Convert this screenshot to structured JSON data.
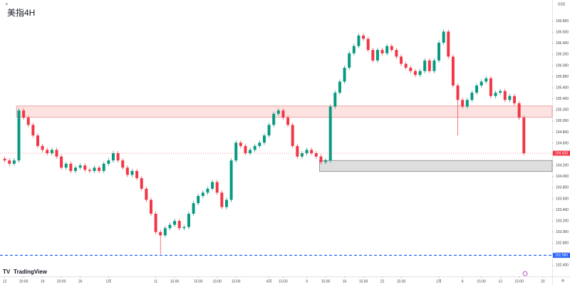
{
  "chart_data": {
    "type": "candlestick",
    "title": "美指4H",
    "brand": "TradingView",
    "currency": "USD",
    "up_color": "#089981",
    "down_color": "#f23645",
    "grid": false,
    "xlim": [
      -1,
      116
    ],
    "ylim": [
      102.2,
      107.18
    ],
    "yticks": [
      {
        "value": 102.4,
        "label": "102.400"
      },
      {
        "value": 102.6,
        "label": "102.600"
      },
      {
        "value": 102.8,
        "label": "102.800"
      },
      {
        "value": 103.0,
        "label": "103.000"
      },
      {
        "value": 103.2,
        "label": "103.200"
      },
      {
        "value": 103.4,
        "label": "103.400"
      },
      {
        "value": 103.6,
        "label": "103.600"
      },
      {
        "value": 103.8,
        "label": "103.800"
      },
      {
        "value": 104.0,
        "label": "104.000"
      },
      {
        "value": 104.2,
        "label": "104.200"
      },
      {
        "value": 104.4,
        "label": "104.400"
      },
      {
        "value": 104.6,
        "label": "104.600"
      },
      {
        "value": 104.8,
        "label": "104.800"
      },
      {
        "value": 105.0,
        "label": "105.000"
      },
      {
        "value": 105.2,
        "label": "105.200"
      },
      {
        "value": 105.4,
        "label": "105.400"
      },
      {
        "value": 105.6,
        "label": "105.600"
      },
      {
        "value": 105.8,
        "label": "105.800"
      },
      {
        "value": 106.0,
        "label": "106.000"
      },
      {
        "value": 106.2,
        "label": "106.200"
      },
      {
        "value": 106.4,
        "label": "106.400"
      },
      {
        "value": 106.6,
        "label": "106.600"
      },
      {
        "value": 106.8,
        "label": "106.800"
      }
    ],
    "xticks": [
      {
        "value": 0,
        "label": "12"
      },
      {
        "value": 4,
        "label": "20:00"
      },
      {
        "value": 8,
        "label": "19"
      },
      {
        "value": 12,
        "label": "20:00"
      },
      {
        "value": 16,
        "label": "26"
      },
      {
        "value": 22,
        "label": "1月"
      },
      {
        "value": 32,
        "label": "11"
      },
      {
        "value": 36,
        "label": "15:00"
      },
      {
        "value": 41,
        "label": "15:00"
      },
      {
        "value": 45,
        "label": "15:00"
      },
      {
        "value": 49,
        "label": "15:00"
      },
      {
        "value": 56,
        "label": "4月"
      },
      {
        "value": 59,
        "label": "15:00"
      },
      {
        "value": 64,
        "label": "9"
      },
      {
        "value": 68,
        "label": "15:00"
      },
      {
        "value": 72,
        "label": "16"
      },
      {
        "value": 76,
        "label": "15:00"
      },
      {
        "value": 80,
        "label": "22"
      },
      {
        "value": 84,
        "label": "15:00"
      },
      {
        "value": 92,
        "label": "1月"
      },
      {
        "value": 97,
        "label": "6"
      },
      {
        "value": 101,
        "label": "15:00"
      },
      {
        "value": 105,
        "label": "13"
      },
      {
        "value": 109,
        "label": "15:00"
      },
      {
        "value": 114,
        "label": "20"
      }
    ],
    "zones": [
      {
        "top": 105.27,
        "bottom": 105.07,
        "start": 2.5,
        "fill": "#fde2e2",
        "stroke": "#e08080"
      },
      {
        "top": 104.29,
        "bottom": 104.09,
        "start": 66.7,
        "fill": "#dedede",
        "stroke": "#777777"
      }
    ],
    "hlines": [
      {
        "value": 102.58,
        "label": "102.580",
        "color": "#2962ff"
      }
    ],
    "last_price": {
      "value": 104.42,
      "label": "104.420",
      "color": "#f23645"
    },
    "open": [
      104.32,
      104.29,
      104.23,
      104.29,
      105.19,
      105.06,
      104.93,
      104.74,
      104.55,
      104.48,
      104.42,
      104.48,
      104.36,
      104.16,
      104.23,
      104.1,
      104.16,
      104.2,
      104.12,
      104.1,
      104.16,
      104.1,
      104.23,
      104.29,
      104.42,
      104.29,
      104.16,
      104.03,
      104.1,
      103.97,
      103.78,
      103.58,
      103.33,
      103.0,
      102.94,
      103.07,
      103.13,
      103.2,
      103.07,
      103.09,
      103.33,
      103.52,
      103.65,
      103.71,
      103.78,
      103.9,
      103.71,
      103.45,
      103.58,
      104.29,
      104.61,
      104.55,
      104.42,
      104.48,
      104.55,
      104.61,
      104.74,
      104.93,
      105.13,
      105.19,
      105.06,
      104.93,
      104.55,
      104.36,
      104.42,
      104.48,
      104.42,
      104.36,
      104.26,
      104.29,
      105.26,
      105.51,
      105.71,
      105.96,
      106.22,
      106.35,
      106.54,
      106.48,
      106.28,
      106.09,
      106.28,
      106.22,
      106.35,
      106.28,
      106.16,
      106.03,
      105.96,
      105.9,
      105.83,
      105.9,
      106.09,
      105.9,
      106.09,
      106.41,
      106.61,
      106.16,
      105.64,
      105.38,
      105.26,
      105.38,
      105.51,
      105.64,
      105.71,
      105.77,
      105.45,
      105.51,
      105.54,
      105.38,
      105.45,
      105.32,
      105.06
    ],
    "high": [
      104.36,
      104.33,
      104.33,
      105.23,
      105.23,
      105.1,
      104.97,
      104.78,
      104.59,
      104.52,
      104.52,
      104.52,
      104.4,
      104.27,
      104.27,
      104.2,
      104.24,
      104.24,
      104.16,
      104.2,
      104.2,
      104.27,
      104.33,
      104.46,
      104.46,
      104.33,
      104.2,
      104.14,
      104.14,
      104.01,
      103.82,
      103.62,
      103.37,
      103.04,
      103.11,
      103.17,
      103.24,
      103.24,
      103.13,
      103.37,
      103.56,
      103.69,
      103.75,
      103.82,
      103.94,
      103.94,
      103.75,
      103.62,
      104.33,
      104.65,
      104.65,
      104.59,
      104.52,
      104.59,
      104.65,
      104.78,
      104.97,
      105.17,
      105.23,
      105.23,
      105.1,
      104.97,
      104.59,
      104.46,
      104.52,
      104.52,
      104.46,
      104.4,
      104.33,
      105.3,
      105.55,
      105.75,
      106.0,
      106.26,
      106.39,
      106.58,
      106.58,
      106.52,
      106.32,
      106.32,
      106.32,
      106.39,
      106.39,
      106.32,
      106.2,
      106.07,
      106.0,
      105.94,
      105.94,
      106.13,
      106.13,
      106.13,
      106.45,
      106.65,
      106.65,
      106.2,
      105.68,
      105.42,
      105.42,
      105.55,
      105.68,
      105.75,
      105.81,
      105.81,
      105.55,
      105.58,
      105.58,
      105.49,
      105.49,
      105.36,
      105.1
    ],
    "low": [
      104.25,
      104.19,
      104.19,
      104.25,
      105.02,
      104.89,
      104.7,
      104.51,
      104.44,
      104.38,
      104.38,
      104.32,
      104.12,
      104.12,
      104.06,
      104.06,
      104.12,
      104.08,
      104.06,
      104.06,
      104.06,
      104.06,
      104.19,
      104.25,
      104.25,
      104.12,
      103.99,
      103.99,
      103.93,
      103.74,
      103.54,
      103.29,
      102.96,
      102.6,
      102.9,
      103.03,
      103.09,
      103.03,
      103.03,
      103.05,
      103.29,
      103.48,
      103.61,
      103.67,
      103.74,
      103.67,
      103.41,
      103.41,
      103.54,
      104.25,
      104.51,
      104.38,
      104.38,
      104.44,
      104.51,
      104.57,
      104.7,
      104.89,
      105.09,
      105.02,
      104.89,
      104.51,
      104.32,
      104.32,
      104.38,
      104.38,
      104.32,
      104.22,
      104.22,
      104.25,
      105.22,
      105.47,
      105.67,
      105.92,
      106.18,
      106.31,
      106.44,
      106.24,
      106.05,
      106.05,
      106.18,
      106.18,
      106.24,
      106.12,
      105.99,
      105.92,
      105.86,
      105.79,
      105.79,
      105.86,
      105.86,
      105.86,
      106.05,
      106.37,
      106.12,
      105.6,
      104.74,
      105.22,
      105.22,
      105.34,
      105.47,
      105.6,
      105.67,
      105.41,
      105.41,
      105.47,
      105.34,
      105.34,
      105.28,
      105.02,
      104.38
    ],
    "close": [
      104.29,
      104.23,
      104.29,
      105.19,
      105.06,
      104.93,
      104.74,
      104.55,
      104.48,
      104.42,
      104.48,
      104.36,
      104.16,
      104.23,
      104.1,
      104.16,
      104.2,
      104.12,
      104.1,
      104.16,
      104.1,
      104.23,
      104.29,
      104.42,
      104.29,
      104.16,
      104.03,
      104.1,
      103.97,
      103.78,
      103.58,
      103.33,
      103.0,
      102.94,
      103.07,
      103.13,
      103.2,
      103.07,
      103.09,
      103.33,
      103.52,
      103.65,
      103.71,
      103.78,
      103.9,
      103.71,
      103.45,
      103.58,
      104.29,
      104.61,
      104.55,
      104.42,
      104.48,
      104.55,
      104.61,
      104.74,
      104.93,
      105.13,
      105.19,
      105.06,
      104.93,
      104.55,
      104.36,
      104.42,
      104.48,
      104.42,
      104.36,
      104.26,
      104.29,
      105.26,
      105.51,
      105.71,
      105.96,
      106.22,
      106.35,
      106.54,
      106.48,
      106.28,
      106.09,
      106.28,
      106.22,
      106.35,
      106.28,
      106.16,
      106.03,
      105.96,
      105.9,
      105.83,
      105.9,
      106.09,
      105.9,
      106.09,
      106.41,
      106.61,
      106.16,
      105.64,
      105.38,
      105.26,
      105.38,
      105.51,
      105.64,
      105.71,
      105.77,
      105.45,
      105.51,
      105.54,
      105.38,
      105.45,
      105.32,
      105.06,
      104.42
    ]
  }
}
